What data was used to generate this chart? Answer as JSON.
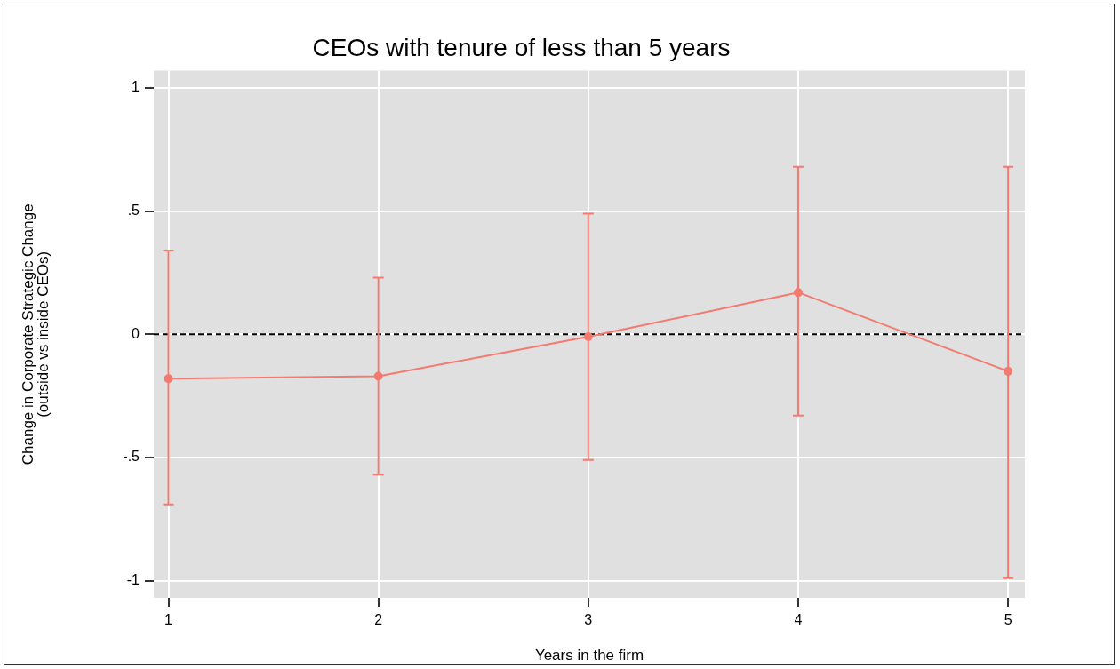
{
  "chart_data": {
    "type": "line",
    "title": "CEOs with tenure of less than 5 years",
    "xlabel": "Years in the firm",
    "ylabel": "Change in Corporate Strategic Change\n(outside vs inside CEOs)",
    "x": [
      1,
      2,
      3,
      4,
      5
    ],
    "series": [
      {
        "color": "#f47a6f",
        "values": [
          -0.18,
          -0.17,
          -0.01,
          0.17,
          -0.15
        ],
        "errors": [
          [
            -0.69,
            0.34
          ],
          [
            -0.57,
            0.23
          ],
          [
            -0.51,
            0.49
          ],
          [
            -0.33,
            0.68
          ],
          [
            -0.99,
            0.68
          ]
        ]
      }
    ],
    "xlim": [
      0.93,
      5.08
    ],
    "xticks": [
      1,
      2,
      3,
      4,
      5
    ],
    "ylim": [
      -1.07,
      1.07
    ],
    "yticks": [
      {
        "value": -1,
        "label": "-1"
      },
      {
        "value": -0.5,
        "label": "-.5"
      },
      {
        "value": 0,
        "label": "0"
      },
      {
        "value": 0.5,
        "label": ".5"
      },
      {
        "value": 1,
        "label": "1"
      }
    ],
    "ref_lines": [
      {
        "axis": "y",
        "value": 0,
        "color": "#000000",
        "line_style": "dashed"
      }
    ],
    "grid": true,
    "legend": false,
    "marker": "circle",
    "line_style": "solid"
  }
}
